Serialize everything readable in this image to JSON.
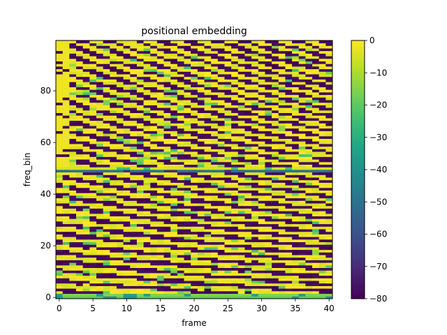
{
  "chart_data": {
    "type": "heatmap",
    "title": "positional embedding",
    "xlabel": "frame",
    "ylabel": "freq_bin",
    "n_frames": 41,
    "n_bins": 100,
    "xlim": [
      -0.5,
      40.5
    ],
    "ylim": [
      -0.5,
      99.5
    ],
    "x_ticks": [
      0,
      5,
      10,
      15,
      20,
      25,
      30,
      35,
      40
    ],
    "y_ticks": [
      0,
      20,
      40,
      60,
      80
    ],
    "colorbar": {
      "vmin": -80,
      "vmax": 0,
      "ticks": [
        0,
        -10,
        -20,
        -30,
        -40,
        -50,
        -60,
        -70,
        -80
      ],
      "colormap": "viridis"
    },
    "special_rows": [
      {
        "bin": 0,
        "value": -20
      },
      {
        "bin": 1,
        "value": -15
      },
      {
        "bin": 49,
        "value": -50
      },
      {
        "bin": 50,
        "value": -5
      }
    ]
  }
}
